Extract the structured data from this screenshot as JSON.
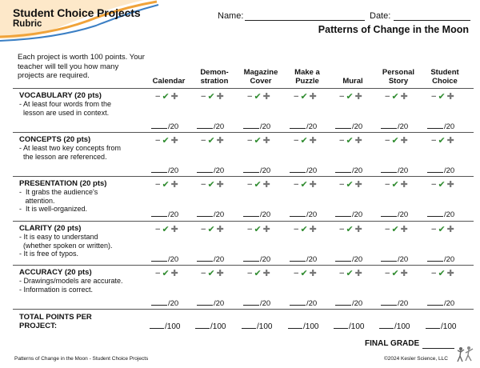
{
  "header": {
    "title": "Student Choice Projects",
    "subtitle": "Rubric",
    "name_label": "Name:",
    "date_label": "Date:",
    "unit_title": "Patterns of Change in the Moon"
  },
  "intro_text": "Each project is worth 100 points. Your teacher will tell you how many projects are required.",
  "columns": [
    {
      "line1": "",
      "line2": "Calendar"
    },
    {
      "line1": "Demon-",
      "line2": "stration"
    },
    {
      "line1": "Magazine",
      "line2": "Cover"
    },
    {
      "line1": "Make a",
      "line2": "Puzzle"
    },
    {
      "line1": "",
      "line2": "Mural"
    },
    {
      "line1": "Personal",
      "line2": "Story"
    },
    {
      "line1": "Student",
      "line2": "Choice"
    }
  ],
  "symbols": {
    "minus": "−",
    "check": "✔",
    "plus": "✚"
  },
  "criteria": [
    {
      "title": "VOCABULARY (20 pts)",
      "bullets": [
        "- At least four words from the",
        "  lesson are used in context."
      ],
      "score": "/20"
    },
    {
      "title": "CONCEPTS (20 pts)",
      "bullets": [
        "- At least two key concepts from",
        "  the lesson are referenced."
      ],
      "score": "/20"
    },
    {
      "title": "PRESENTATION (20 pts)",
      "bullets": [
        "-  It grabs the audience's",
        "   attention.",
        "-  It is well-organized."
      ],
      "score": "/20"
    },
    {
      "title": "CLARITY (20 pts)",
      "bullets": [
        "- It is easy to understand",
        "  (whether spoken or written).",
        "- It is free of typos."
      ],
      "score": "/20"
    },
    {
      "title": "ACCURACY (20 pts)",
      "bullets": [
        "- Drawings/models are accurate.",
        "- Information is correct."
      ],
      "score": "/20"
    }
  ],
  "total": {
    "line1": "TOTAL POINTS PER",
    "line2": "PROJECT:",
    "score": "/100"
  },
  "final_grade_label": "FINAL GRADE",
  "footer": {
    "left": "Patterns of Change in the Moon - Student Choice Projects",
    "right": "©2024 Kesler Science, LLC"
  },
  "colors": {
    "check": "#2e8b2e",
    "swoosh_orange": "#f0a33a",
    "swoosh_blue": "#3b7fc4"
  }
}
